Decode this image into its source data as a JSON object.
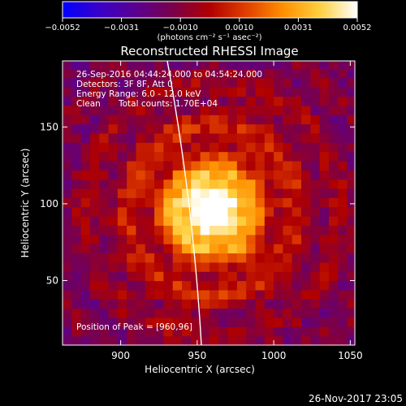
{
  "colorbar": {
    "tick_labels": [
      "−0.0052",
      "−0.0031",
      "−0.0010",
      "0.0010",
      "0.0031",
      "0.0052"
    ],
    "unit_label": "(photons cm⁻² s⁻¹ asec⁻²)",
    "range": [
      -0.0052,
      0.0052
    ]
  },
  "chart_data": {
    "type": "heatmap",
    "title": "Reconstructed RHESSI Image",
    "xlabel": "Heliocentric X (arcsec)",
    "ylabel": "Heliocentric Y (arcsec)",
    "xlim": [
      862,
      1053
    ],
    "ylim": [
      8,
      193
    ],
    "x_ticks": [
      900,
      950,
      1000,
      1050
    ],
    "y_ticks": [
      50,
      100,
      150
    ],
    "peak": [
      960,
      96
    ],
    "annotations": {
      "time": "26-Sep-2016 04:44:24.000 to 04:54:24.000",
      "detectors": "Detectors: 3F 8F, Att 0",
      "energy": "Energy Range: 6.0 - 12.0 keV",
      "clean": "Clean",
      "counts": "Total counts: 1.70E+04",
      "peak_label": "Position of Peak = [960,96]"
    }
  },
  "footer": {
    "date": "26-Nov-2017 23:05"
  },
  "colors": {
    "background": "#000000",
    "limb": "#ffffff",
    "colormap": [
      "#0000ff",
      "#3a00c8",
      "#5a0090",
      "#7a004a",
      "#b00000",
      "#e04000",
      "#ff9000",
      "#ffd040",
      "#ffffff"
    ]
  }
}
